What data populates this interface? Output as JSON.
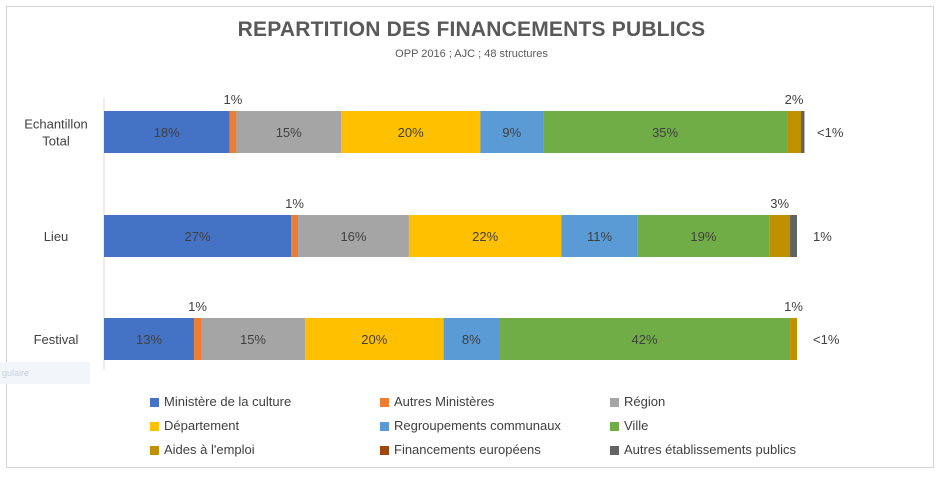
{
  "chart_data": {
    "type": "bar",
    "orientation": "horizontal",
    "stacked": true,
    "title": "REPARTITION DES FINANCEMENTS PUBLICS",
    "subtitle": "OPP 2016 ; AJC ; 48 structures",
    "categories": [
      "Echantillon Total",
      "Lieu",
      "Festival"
    ],
    "category_lines": [
      [
        "Echantillon",
        "Total"
      ],
      [
        "Lieu"
      ],
      [
        "Festival"
      ]
    ],
    "series": [
      {
        "name": "Ministère de la culture",
        "color": "#4472c4",
        "values": [
          18,
          27,
          13
        ],
        "labels": [
          "18%",
          "27%",
          "13%"
        ],
        "label_pos": "inside"
      },
      {
        "name": "Autres Ministères",
        "color": "#ed7d31",
        "values": [
          1,
          1,
          1
        ],
        "labels": [
          "1%",
          "1%",
          "1%"
        ],
        "label_pos": "above"
      },
      {
        "name": "Région",
        "color": "#a5a5a5",
        "values": [
          15,
          16,
          15
        ],
        "labels": [
          "15%",
          "16%",
          "15%"
        ],
        "label_pos": "inside"
      },
      {
        "name": "Département",
        "color": "#ffc000",
        "values": [
          20,
          22,
          20
        ],
        "labels": [
          "20%",
          "22%",
          "20%"
        ],
        "label_pos": "inside"
      },
      {
        "name": "Regroupements communaux",
        "color": "#5b9bd5",
        "values": [
          9,
          11,
          8
        ],
        "labels": [
          "9%",
          "11%",
          "8%"
        ],
        "label_pos": "inside"
      },
      {
        "name": "Ville",
        "color": "#70ad47",
        "values": [
          35,
          19,
          42
        ],
        "labels": [
          "35%",
          "19%",
          "42%"
        ],
        "label_pos": "inside"
      },
      {
        "name": "Aides à l'emploi",
        "color": "#bf9000",
        "values": [
          2,
          3,
          1
        ],
        "labels": [
          "2%",
          "3%",
          "1%"
        ],
        "label_pos": "above"
      },
      {
        "name": "Financements européens",
        "color": "#9e480e",
        "values": [
          0,
          0,
          0
        ],
        "labels": [
          "",
          "",
          ""
        ],
        "label_pos": "none"
      },
      {
        "name": "Autres établissements publics",
        "color": "#636363",
        "values": [
          0.5,
          1,
          0
        ],
        "labels": [
          "<1%",
          "1%",
          "<1%"
        ],
        "label_pos": "right"
      }
    ],
    "xlim": [
      0,
      100
    ],
    "legend_position": "bottom",
    "grid": false
  },
  "ghost_text": "gulaire"
}
